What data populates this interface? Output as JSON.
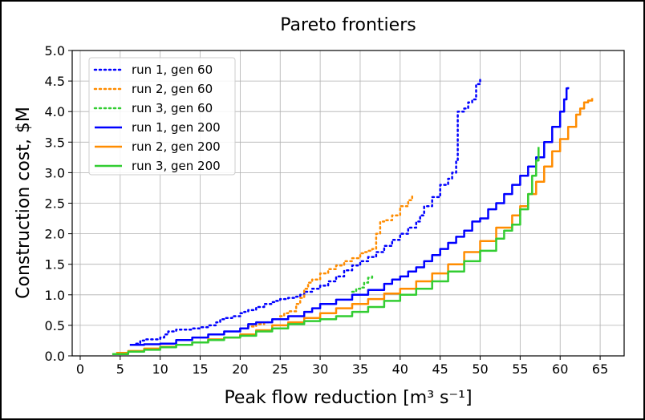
{
  "chart_data": {
    "type": "line",
    "title": "Pareto frontiers",
    "xlabel": "Peak flow reduction [m³ s⁻¹]",
    "ylabel": "Construction cost, $M",
    "xlim": [
      -1,
      68
    ],
    "ylim": [
      0,
      5.0
    ],
    "xticks": [
      "0",
      "5",
      "10",
      "15",
      "20",
      "25",
      "30",
      "35",
      "40",
      "45",
      "50",
      "55",
      "60",
      "65"
    ],
    "yticks": [
      "0.0",
      "0.5",
      "1.0",
      "1.5",
      "2.0",
      "2.5",
      "3.0",
      "3.5",
      "4.0",
      "4.5",
      "5.0"
    ],
    "grid": true,
    "legend_position": "upper-left",
    "series": [
      {
        "name": "run 1, gen 60",
        "color": "#0000ff",
        "style": "dotted",
        "x": [
          7.0,
          7.5,
          8.0,
          9.0,
          10.0,
          10.5,
          11.0,
          12.0,
          14.0,
          15.0,
          16.0,
          17.0,
          17.5,
          18.0,
          19.0,
          20.0,
          20.5,
          21.0,
          22.0,
          23.0,
          24.0,
          24.5,
          25.0,
          26.0,
          27.0,
          27.5,
          28.0,
          29.0,
          30.0,
          31.0,
          32.0,
          33.0,
          34.0,
          35.0,
          36.0,
          37.0,
          38.0,
          39.0,
          40.0,
          41.0,
          42.0,
          42.5,
          43.0,
          44.0,
          45.0,
          46.0,
          46.5,
          47.0,
          47.2,
          48.0,
          48.5,
          49.0,
          49.5,
          50.0
        ],
        "y": [
          0.2,
          0.25,
          0.27,
          0.27,
          0.3,
          0.35,
          0.4,
          0.43,
          0.45,
          0.47,
          0.5,
          0.55,
          0.6,
          0.62,
          0.65,
          0.7,
          0.72,
          0.75,
          0.8,
          0.85,
          0.88,
          0.9,
          0.93,
          0.95,
          0.97,
          1.0,
          1.05,
          1.1,
          1.15,
          1.22,
          1.3,
          1.4,
          1.48,
          1.55,
          1.62,
          1.7,
          1.8,
          1.9,
          2.0,
          2.1,
          2.2,
          2.3,
          2.45,
          2.6,
          2.8,
          2.9,
          3.0,
          3.2,
          4.0,
          4.05,
          4.15,
          4.2,
          4.45,
          4.52
        ]
      },
      {
        "name": "run 2, gen 60",
        "color": "#ff8c00",
        "style": "dotted",
        "x": [
          20.5,
          21.0,
          22.0,
          23.0,
          24.0,
          25.0,
          25.5,
          26.0,
          27.0,
          27.5,
          28.0,
          28.5,
          29.0,
          30.0,
          31.0,
          32.0,
          33.0,
          34.0,
          35.0,
          35.5,
          36.0,
          36.5,
          37.0,
          37.5,
          38.0,
          39.0,
          40.0,
          41.0,
          41.5
        ],
        "y": [
          0.45,
          0.48,
          0.52,
          0.55,
          0.6,
          0.65,
          0.7,
          0.73,
          0.85,
          0.95,
          1.1,
          1.2,
          1.25,
          1.35,
          1.42,
          1.48,
          1.55,
          1.6,
          1.68,
          1.7,
          1.72,
          1.75,
          2.0,
          2.2,
          2.22,
          2.3,
          2.45,
          2.55,
          2.65
        ]
      },
      {
        "name": "run 3, gen 60",
        "color": "#32cd32",
        "style": "dotted",
        "x": [
          34.0,
          34.5,
          35.0,
          35.5,
          36.0,
          36.5
        ],
        "y": [
          1.05,
          1.1,
          1.12,
          1.2,
          1.28,
          1.35
        ]
      },
      {
        "name": "run 1, gen 200",
        "color": "#0000ff",
        "style": "solid",
        "x": [
          6.2,
          8.0,
          10.0,
          12.0,
          14.0,
          16.0,
          18.0,
          20.0,
          21.0,
          22.0,
          24.0,
          26.0,
          28.0,
          29.0,
          30.0,
          32.0,
          34.0,
          36.0,
          38.0,
          39.0,
          40.0,
          41.0,
          42.0,
          43.0,
          44.0,
          45.0,
          46.0,
          47.0,
          48.0,
          49.0,
          50.0,
          51.0,
          52.0,
          53.0,
          54.0,
          55.0,
          56.0,
          57.0,
          58.0,
          59.0,
          60.0,
          60.5,
          60.8,
          61.0
        ],
        "y": [
          0.18,
          0.19,
          0.2,
          0.26,
          0.3,
          0.35,
          0.4,
          0.45,
          0.52,
          0.55,
          0.6,
          0.65,
          0.72,
          0.78,
          0.85,
          0.92,
          1.0,
          1.08,
          1.18,
          1.25,
          1.3,
          1.38,
          1.45,
          1.55,
          1.65,
          1.75,
          1.85,
          1.95,
          2.05,
          2.2,
          2.25,
          2.4,
          2.5,
          2.65,
          2.8,
          2.95,
          3.1,
          3.25,
          3.5,
          3.75,
          4.0,
          4.2,
          4.38,
          4.4
        ]
      },
      {
        "name": "run 2, gen 200",
        "color": "#ff8c00",
        "style": "solid",
        "x": [
          4.5,
          6.0,
          8.0,
          10.0,
          12.0,
          14.0,
          16.0,
          18.0,
          20.0,
          22.0,
          24.0,
          26.0,
          28.0,
          30.0,
          32.0,
          34.0,
          36.0,
          38.0,
          40.0,
          42.0,
          44.0,
          46.0,
          48.0,
          50.0,
          52.0,
          54.0,
          55.0,
          56.0,
          57.0,
          58.0,
          59.0,
          60.0,
          61.0,
          62.0,
          62.5,
          63.0,
          63.5,
          64.0
        ],
        "y": [
          0.05,
          0.08,
          0.12,
          0.15,
          0.18,
          0.22,
          0.27,
          0.3,
          0.35,
          0.42,
          0.5,
          0.55,
          0.62,
          0.7,
          0.78,
          0.85,
          0.93,
          1.02,
          1.1,
          1.22,
          1.35,
          1.5,
          1.7,
          1.88,
          2.1,
          2.3,
          2.45,
          2.65,
          2.85,
          3.1,
          3.35,
          3.55,
          3.75,
          3.95,
          4.05,
          4.15,
          4.18,
          4.22
        ]
      },
      {
        "name": "run 3, gen 200",
        "color": "#32cd32",
        "style": "solid",
        "x": [
          4.0,
          6.0,
          8.0,
          10.0,
          12.0,
          14.0,
          16.0,
          18.0,
          20.0,
          22.0,
          24.0,
          26.0,
          28.0,
          30.0,
          32.0,
          34.0,
          36.0,
          38.0,
          40.0,
          42.0,
          44.0,
          46.0,
          48.0,
          50.0,
          52.0,
          53.0,
          54.0,
          55.0,
          56.0,
          56.5,
          57.0,
          57.3
        ],
        "y": [
          0.03,
          0.07,
          0.1,
          0.14,
          0.18,
          0.22,
          0.26,
          0.3,
          0.33,
          0.4,
          0.45,
          0.52,
          0.57,
          0.6,
          0.65,
          0.72,
          0.8,
          0.9,
          1.0,
          1.1,
          1.22,
          1.38,
          1.55,
          1.72,
          1.92,
          2.05,
          2.15,
          2.4,
          2.65,
          2.95,
          3.2,
          3.42
        ]
      }
    ]
  }
}
